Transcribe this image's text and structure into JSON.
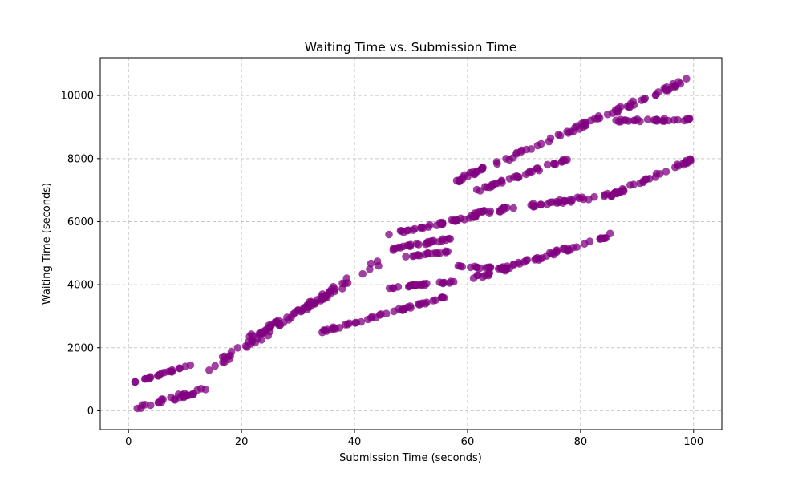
{
  "chart_data": {
    "type": "scatter",
    "title": "Waiting Time vs. Submission Time",
    "xlabel": "Submission Time (seconds)",
    "ylabel": "Waiting Time (seconds)",
    "xlim": [
      -5,
      105
    ],
    "ylim": [
      -600,
      11200
    ],
    "xticks": [
      0,
      20,
      40,
      60,
      80,
      100
    ],
    "yticks": [
      0,
      2000,
      4000,
      6000,
      8000,
      10000
    ],
    "xtick_labels": [
      "0",
      "20",
      "40",
      "60",
      "80",
      "100"
    ],
    "ytick_labels": [
      "0",
      "2000",
      "4000",
      "6000",
      "8000",
      "10000"
    ],
    "grid": true,
    "grid_style": "dashed",
    "marker_color": "#800080",
    "marker_opacity": 0.75,
    "point_count": 600,
    "series": [
      {
        "x_range": [
          0,
          100
        ],
        "bands": [
          {
            "x": [
              0,
              14
            ],
            "y_start": 0,
            "y_end": 700,
            "spread": 160
          },
          {
            "x": [
              1,
              11
            ],
            "y_start": 900,
            "y_end": 1450,
            "spread": 60
          },
          {
            "x": [
              14,
              45
            ],
            "y_start": 1300,
            "y_end": 4800,
            "spread": 250
          },
          {
            "x": [
              21,
              38
            ],
            "y_start": 2300,
            "y_end": 3900,
            "spread": 120
          },
          {
            "x": [
              34,
              56
            ],
            "y_start": 2500,
            "y_end": 3600,
            "spread": 80
          },
          {
            "x": [
              46,
              58
            ],
            "y_start": 3900,
            "y_end": 4100,
            "spread": 60
          },
          {
            "x": [
              46,
              62
            ],
            "y_start": 5600,
            "y_end": 6200,
            "spread": 80
          },
          {
            "x": [
              46,
              58
            ],
            "y_start": 5100,
            "y_end": 5500,
            "spread": 80
          },
          {
            "x": [
              49,
              57
            ],
            "y_start": 4900,
            "y_end": 5050,
            "spread": 60
          },
          {
            "x": [
              57,
              67
            ],
            "y_start": 4600,
            "y_end": 4500,
            "spread": 60
          },
          {
            "x": [
              58,
              100
            ],
            "y_start": 7300,
            "y_end": 10600,
            "spread": 160
          },
          {
            "x": [
              61,
              78
            ],
            "y_start": 6950,
            "y_end": 8000,
            "spread": 100
          },
          {
            "x": [
              61,
              87
            ],
            "y_start": 6250,
            "y_end": 6900,
            "spread": 130
          },
          {
            "x": [
              61,
              86
            ],
            "y_start": 4200,
            "y_end": 5600,
            "spread": 150
          },
          {
            "x": [
              85,
              100
            ],
            "y_start": 6800,
            "y_end": 8000,
            "spread": 120
          },
          {
            "x": [
              86,
              100
            ],
            "y_start": 9200,
            "y_end": 9250,
            "spread": 80
          }
        ]
      }
    ]
  }
}
